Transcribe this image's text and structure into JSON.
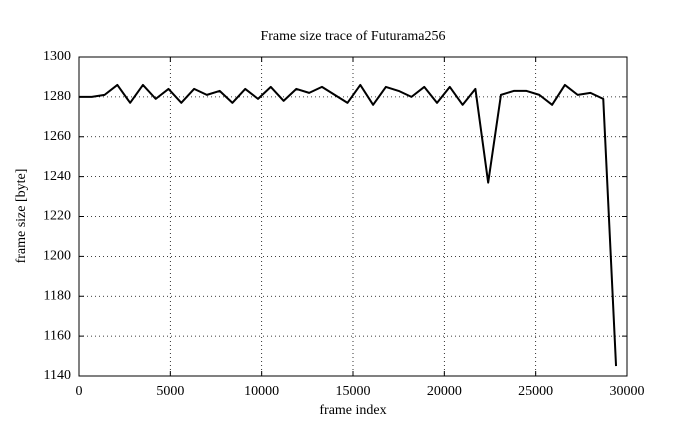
{
  "chart_data": {
    "type": "line",
    "title": "Frame size trace of Futurama256",
    "xlabel": "frame index",
    "ylabel": "frame size [byte]",
    "x": [
      0,
      700,
      1400,
      2100,
      2800,
      3500,
      4200,
      4900,
      5600,
      6300,
      7000,
      7700,
      8400,
      9100,
      9800,
      10500,
      11200,
      11900,
      12600,
      13300,
      14000,
      14700,
      15400,
      16100,
      16800,
      17500,
      18200,
      18900,
      19600,
      20300,
      21000,
      21700,
      22400,
      23100,
      23800,
      24500,
      25200,
      25900,
      26600,
      27300,
      28000,
      28700,
      29400
    ],
    "series": [
      {
        "name": "Futurama256",
        "color": "#000000",
        "values": [
          1280,
          1280,
          1281,
          1286,
          1277,
          1286,
          1279,
          1284,
          1277,
          1284,
          1281,
          1283,
          1277,
          1284,
          1279,
          1285,
          1278,
          1284,
          1282,
          1285,
          1281,
          1277,
          1286,
          1276,
          1285,
          1283,
          1280,
          1285,
          1277,
          1285,
          1276,
          1284,
          1237,
          1281,
          1283,
          1283,
          1281,
          1276,
          1286,
          1281,
          1282,
          1279,
          1145
        ]
      }
    ],
    "xlim": [
      0,
      30000
    ],
    "ylim": [
      1140,
      1300
    ],
    "xticks": [
      0,
      5000,
      10000,
      15000,
      20000,
      25000,
      30000
    ],
    "yticks": [
      1140,
      1160,
      1180,
      1200,
      1220,
      1240,
      1260,
      1280,
      1300
    ],
    "grid": true
  }
}
